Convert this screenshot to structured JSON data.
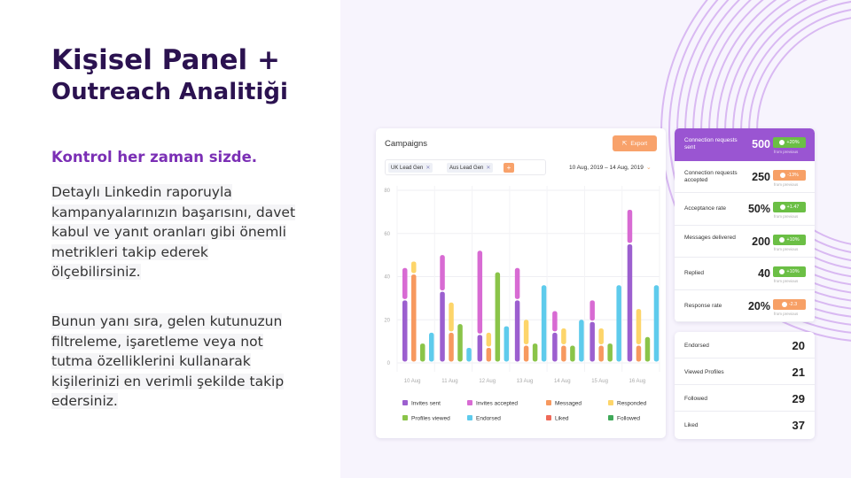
{
  "hero": {
    "title_line1": "Kişisel Panel +",
    "title_line2": "Outreach Analitiği",
    "subtitle": "Kontrol her zaman sizde.",
    "paragraph1": [
      "Detaylı Linkedin raporuyla",
      "kampanyalarınızın başarısını, davet",
      "kabul ve yanıt oranları gibi önemli",
      "metrikleri takip ederek",
      "ölçebilirsiniz."
    ],
    "paragraph2": [
      "Bunun yanı sıra, gelen kutunuzun",
      "filtreleme, işaretleme veya not",
      "tutma özelliklerini kullanarak",
      "kişilerinizi en verimli şekilde takip",
      "edersiniz."
    ]
  },
  "campaigns": {
    "title": "Campaigns",
    "export_label": "Export",
    "filters": [
      "UK Lead Gen",
      "Aus Lead Gen"
    ],
    "add_label": "+",
    "date_range": "10 Aug, 2019 – 14 Aug, 2019"
  },
  "chart_data": {
    "type": "bar",
    "categories": [
      "10 Aug",
      "11 Aug",
      "12 Aug",
      "13 Aug",
      "14 Aug",
      "15 Aug",
      "16 Aug"
    ],
    "y_ticks": [
      0,
      20,
      40,
      60,
      80
    ],
    "ylim": [
      0,
      80
    ],
    "legend": [
      {
        "name": "Invites sent",
        "color": "#9c5fcf"
      },
      {
        "name": "Invites accepted",
        "color": "#d86bd3"
      },
      {
        "name": "Messaged",
        "color": "#f7995f"
      },
      {
        "name": "Responded",
        "color": "#fdd56a"
      },
      {
        "name": "Profiles viewed",
        "color": "#8ac449"
      },
      {
        "name": "Endorsed",
        "color": "#5ecbec"
      },
      {
        "name": "Liked",
        "color": "#ef6a59"
      },
      {
        "name": "Followed",
        "color": "#3fa959"
      }
    ],
    "groups": [
      [
        [
          {
            "series": "Invites sent",
            "value": 29
          },
          {
            "series": "Invites accepted",
            "value": 15
          }
        ],
        [
          {
            "series": "Messaged",
            "value": 41
          },
          {
            "series": "Responded",
            "value": 6
          }
        ],
        [
          {
            "series": "Profiles viewed",
            "value": 9
          }
        ],
        [
          {
            "series": "Endorsed",
            "value": 14
          }
        ]
      ],
      [
        [
          {
            "series": "Invites sent",
            "value": 33
          },
          {
            "series": "Invites accepted",
            "value": 17
          }
        ],
        [
          {
            "series": "Messaged",
            "value": 14
          },
          {
            "series": "Responded",
            "value": 14
          }
        ],
        [
          {
            "series": "Profiles viewed",
            "value": 18
          }
        ],
        [
          {
            "series": "Endorsed",
            "value": 7
          }
        ]
      ],
      [
        [
          {
            "series": "Invites sent",
            "value": 13
          },
          {
            "series": "Invites accepted",
            "value": 39
          }
        ],
        [
          {
            "series": "Messaged",
            "value": 7
          },
          {
            "series": "Responded",
            "value": 7
          }
        ],
        [
          {
            "series": "Profiles viewed",
            "value": 42
          }
        ],
        [
          {
            "series": "Endorsed",
            "value": 17
          }
        ]
      ],
      [
        [
          {
            "series": "Invites sent",
            "value": 29
          },
          {
            "series": "Invites accepted",
            "value": 15
          }
        ],
        [
          {
            "series": "Messaged",
            "value": 8
          },
          {
            "series": "Responded",
            "value": 12
          }
        ],
        [
          {
            "series": "Profiles viewed",
            "value": 9
          }
        ],
        [
          {
            "series": "Endorsed",
            "value": 36
          }
        ]
      ],
      [
        [
          {
            "series": "Invites sent",
            "value": 14
          },
          {
            "series": "Invites accepted",
            "value": 10
          }
        ],
        [
          {
            "series": "Messaged",
            "value": 8
          },
          {
            "series": "Responded",
            "value": 8
          }
        ],
        [
          {
            "series": "Profiles viewed",
            "value": 8
          }
        ],
        [
          {
            "series": "Endorsed",
            "value": 20
          }
        ]
      ],
      [
        [
          {
            "series": "Invites sent",
            "value": 19
          },
          {
            "series": "Invites accepted",
            "value": 10
          }
        ],
        [
          {
            "series": "Messaged",
            "value": 8
          },
          {
            "series": "Responded",
            "value": 8
          }
        ],
        [
          {
            "series": "Profiles viewed",
            "value": 9
          }
        ],
        [
          {
            "series": "Endorsed",
            "value": 36
          }
        ]
      ],
      [
        [
          {
            "series": "Invites sent",
            "value": 55
          },
          {
            "series": "Invites accepted",
            "value": 16
          }
        ],
        [
          {
            "series": "Messaged",
            "value": 8
          },
          {
            "series": "Responded",
            "value": 17
          }
        ],
        [
          {
            "series": "Profiles viewed",
            "value": 12
          }
        ],
        [
          {
            "series": "Endorsed",
            "value": 36
          }
        ]
      ]
    ]
  },
  "metrics": [
    {
      "label": "Connection requests sent",
      "value": "500",
      "delta": "+20%",
      "delta_type": "green",
      "from": "from previous"
    },
    {
      "label": "Connection requests accepted",
      "value": "250",
      "delta": "-13%",
      "delta_type": "orange",
      "from": "from previous"
    },
    {
      "label": "Acceptance rate",
      "value": "50%",
      "delta": "+1.47",
      "delta_type": "green",
      "from": "from previous"
    },
    {
      "label": "Messages delivered",
      "value": "200",
      "delta": "+10%",
      "delta_type": "green",
      "from": "from previous"
    },
    {
      "label": "Replied",
      "value": "40",
      "delta": "+10%",
      "delta_type": "green",
      "from": "from previous"
    },
    {
      "label": "Response rate",
      "value": "20%",
      "delta": "-2.3",
      "delta_type": "orange",
      "from": "from previous"
    }
  ],
  "stats": [
    {
      "label": "Endorsed",
      "value": "20"
    },
    {
      "label": "Viewed Profiles",
      "value": "21"
    },
    {
      "label": "Followed",
      "value": "29"
    },
    {
      "label": "Liked",
      "value": "37"
    }
  ]
}
